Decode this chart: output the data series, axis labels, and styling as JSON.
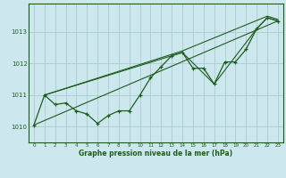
{
  "title": "Graphe pression niveau de la mer (hPa)",
  "background_color": "#cce8ee",
  "grid_color": "#aacccc",
  "line_color": "#1e5c1e",
  "xlim": [
    -0.5,
    23.5
  ],
  "ylim": [
    1009.5,
    1013.9
  ],
  "yticks": [
    1010,
    1011,
    1012,
    1013
  ],
  "xticks": [
    0,
    1,
    2,
    3,
    4,
    5,
    6,
    7,
    8,
    9,
    10,
    11,
    12,
    13,
    14,
    15,
    16,
    17,
    18,
    19,
    20,
    21,
    22,
    23
  ],
  "marker_x": [
    0,
    1,
    2,
    3,
    4,
    5,
    6,
    7,
    8,
    9,
    10,
    11,
    12,
    13,
    14,
    15,
    16,
    17,
    18,
    19,
    20,
    21,
    22,
    23
  ],
  "marker_y": [
    1010.05,
    1011.0,
    1010.7,
    1010.75,
    1010.5,
    1010.4,
    1010.1,
    1010.35,
    1010.5,
    1010.5,
    1011.0,
    1011.55,
    1011.9,
    1012.25,
    1012.35,
    1011.85,
    1011.85,
    1011.35,
    1012.05,
    1012.05,
    1012.45,
    1013.1,
    1013.45,
    1013.35
  ],
  "trend2_x": [
    0,
    23
  ],
  "trend2_y": [
    1010.05,
    1013.35
  ],
  "trend3_x": [
    1,
    14,
    17,
    21,
    22,
    23
  ],
  "trend3_y": [
    1011.0,
    1012.35,
    1011.35,
    1013.1,
    1013.45,
    1013.35
  ],
  "trend4_x": [
    1,
    14,
    22,
    23
  ],
  "trend4_y": [
    1011.0,
    1012.4,
    1013.5,
    1013.4
  ]
}
